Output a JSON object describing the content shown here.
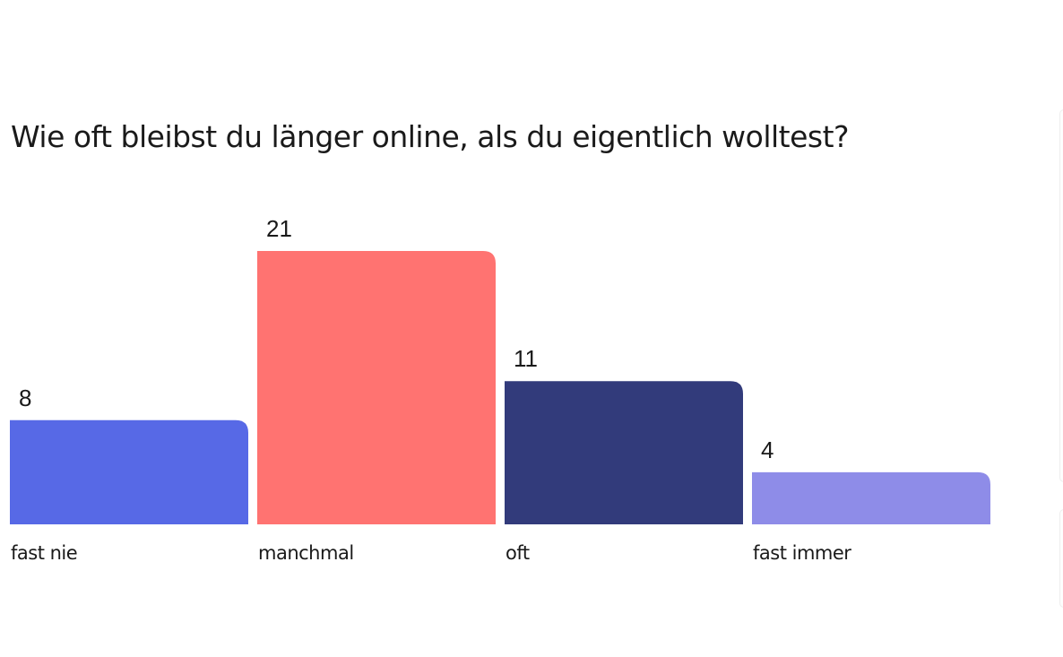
{
  "chart_data": {
    "type": "bar",
    "title": "Wie oft bleibst du länger online, als du eigentlich wolltest?",
    "categories": [
      "fast nie",
      "manchmal",
      "oft",
      "fast immer"
    ],
    "values": [
      8,
      21,
      11,
      4
    ],
    "colors": [
      "#5769e6",
      "#ff7371",
      "#323b7b",
      "#8e8ce8"
    ],
    "xlabel": "",
    "ylabel": "",
    "ylim": [
      0,
      21
    ],
    "grid": false,
    "legend": "none"
  }
}
